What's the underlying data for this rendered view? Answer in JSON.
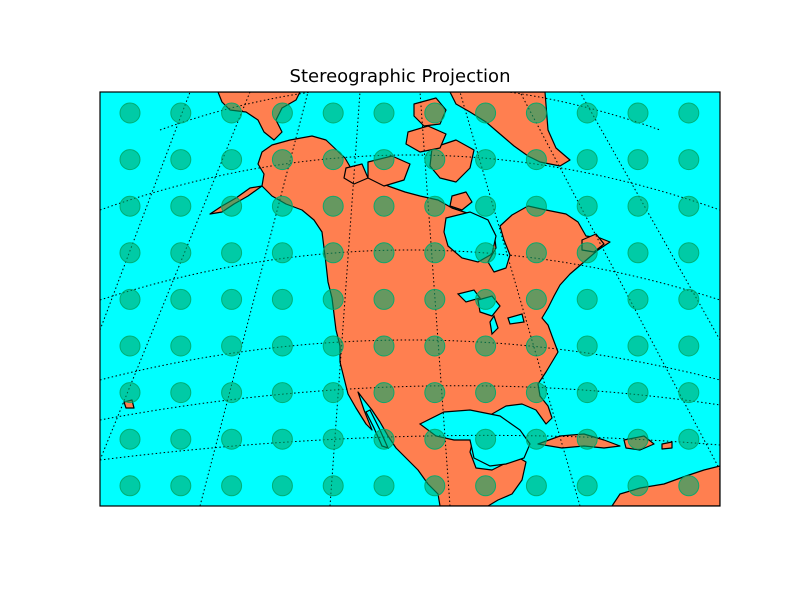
{
  "title": "Stereographic Projection",
  "colors": {
    "ocean": "#00ffff",
    "land": "#ff7f50",
    "coast": "#000000",
    "marker": "#00a86b",
    "frame": "#000000",
    "graticule": "#000000"
  },
  "markers": {
    "rows": 9,
    "cols": 12,
    "shape": "circle",
    "opacity": 0.6
  },
  "icons": [
    "circle-marker"
  ]
}
